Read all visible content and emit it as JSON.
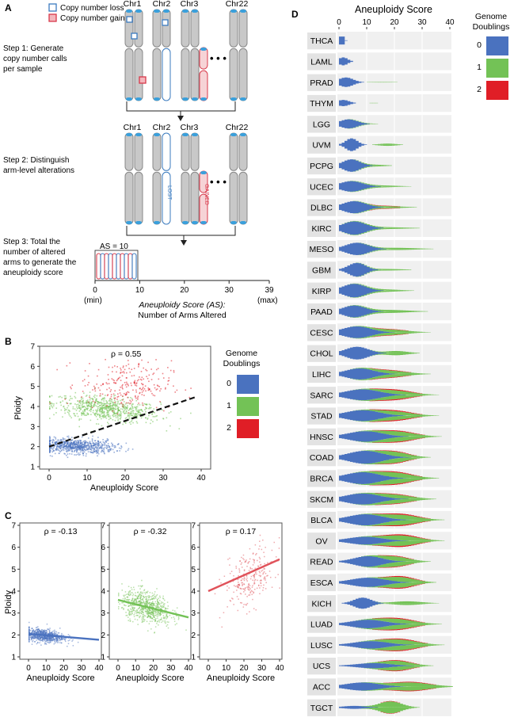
{
  "panelA": {
    "letter": "A",
    "legend": {
      "loss": "Copy number loss",
      "gain": "Copy number gain"
    },
    "colors": {
      "loss": "#3b7bbf",
      "gain": "#d8394a",
      "chrom": "#c8c8c8",
      "telomere": "#3aa0dc"
    },
    "chromosomes": [
      "Chr1",
      "Chr2",
      "Chr3",
      "Chr22"
    ],
    "ellipsis": "• • •",
    "step1": [
      "Step 1: Generate",
      "copy number calls",
      "per sample"
    ],
    "step2": [
      "Step 2: Distinguish",
      "arm-level alterations"
    ],
    "step3": [
      "Step 3: Total the",
      "number of altered",
      "arms to generate the",
      "aneuploidy score"
    ],
    "lost": "LOST",
    "gained": "GAINED",
    "as_label": "AS = 10",
    "axis_ticks": [
      "0",
      "10",
      "20",
      "30",
      "39"
    ],
    "axis_min": "(min)",
    "axis_max": "(max)",
    "axis_title1": "Aneuploidy Score (AS):",
    "axis_title2": "Number of Arms Altered"
  },
  "panelB": {
    "letter": "B",
    "rho": "ρ = 0.55",
    "xlabel": "Aneuploidy Score",
    "ylabel": "Ploidy",
    "xticks": [
      "0",
      "10",
      "20",
      "30",
      "40"
    ],
    "yticks": [
      "1",
      "2",
      "3",
      "4",
      "5",
      "6",
      "7"
    ],
    "legend_title": [
      "Genome",
      "Doublings"
    ],
    "legend": [
      {
        "label": "0",
        "color": "#4a72bf"
      },
      {
        "label": "1",
        "color": "#73c256"
      },
      {
        "label": "2",
        "color": "#e01e26"
      }
    ]
  },
  "panelC": {
    "letter": "C",
    "xlabel": "Aneuploidy Score",
    "ylabel": "Ploidy",
    "xticks": [
      "0",
      "10",
      "20",
      "30",
      "40"
    ],
    "yticks": [
      "1",
      "2",
      "3",
      "4",
      "5",
      "6",
      "7"
    ],
    "subplots": [
      {
        "rho": "ρ = -0.13",
        "color": "#4a72bf"
      },
      {
        "rho": "ρ = -0.32",
        "color": "#73c256"
      },
      {
        "rho": "ρ = 0.17",
        "color": "#e0525a"
      }
    ]
  },
  "panelD": {
    "letter": "D",
    "title": "Aneuploidy Score",
    "xticks": [
      "0",
      "10",
      "20",
      "30",
      "40"
    ],
    "legend_title": [
      "Genome",
      "Doublings"
    ],
    "legend": [
      {
        "label": "0",
        "color": "#4a72bf"
      },
      {
        "label": "1",
        "color": "#73c256"
      },
      {
        "label": "2",
        "color": "#e01e26"
      }
    ],
    "cancers": [
      "THCA",
      "LAML",
      "PRAD",
      "THYM",
      "LGG",
      "UVM",
      "PCPG",
      "UCEC",
      "DLBC",
      "KIRC",
      "MESO",
      "GBM",
      "KIRP",
      "PAAD",
      "CESC",
      "CHOL",
      "LIHC",
      "SARC",
      "STAD",
      "HNSC",
      "COAD",
      "BRCA",
      "SKCM",
      "BLCA",
      "OV",
      "READ",
      "ESCA",
      "KICH",
      "LUAD",
      "LUSC",
      "UCS",
      "ACC",
      "TGCT"
    ]
  }
}
